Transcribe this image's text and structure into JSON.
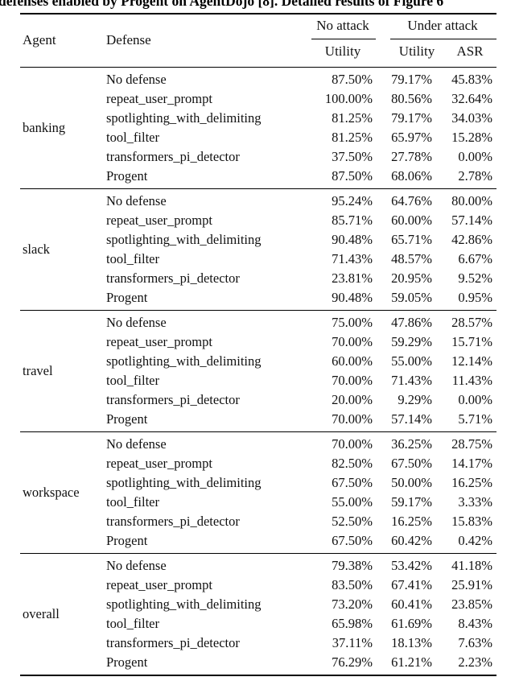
{
  "caption": {
    "visible_fragment": "defenses enabled by Progent on AgentDojo [8]. Detailed results of Figure 6"
  },
  "table": {
    "headers": {
      "agent": "Agent",
      "defense": "Defense",
      "no_attack_group": "No attack",
      "under_attack_group": "Under attack",
      "no_attack_utility": "Utility",
      "under_attack_utility": "Utility",
      "asr": "ASR"
    },
    "sections": [
      {
        "agent": "banking",
        "rows": [
          {
            "defense": "No defense",
            "na_utility": "87.50%",
            "ua_utility": "79.17%",
            "asr": "45.83%"
          },
          {
            "defense": "repeat_user_prompt",
            "na_utility": "100.00%",
            "ua_utility": "80.56%",
            "asr": "32.64%"
          },
          {
            "defense": "spotlighting_with_delimiting",
            "na_utility": "81.25%",
            "ua_utility": "79.17%",
            "asr": "34.03%"
          },
          {
            "defense": "tool_filter",
            "na_utility": "81.25%",
            "ua_utility": "65.97%",
            "asr": "15.28%"
          },
          {
            "defense": "transformers_pi_detector",
            "na_utility": "37.50%",
            "ua_utility": "27.78%",
            "asr": "0.00%"
          },
          {
            "defense": "Progent",
            "na_utility": "87.50%",
            "ua_utility": "68.06%",
            "asr": "2.78%"
          }
        ]
      },
      {
        "agent": "slack",
        "rows": [
          {
            "defense": "No defense",
            "na_utility": "95.24%",
            "ua_utility": "64.76%",
            "asr": "80.00%"
          },
          {
            "defense": "repeat_user_prompt",
            "na_utility": "85.71%",
            "ua_utility": "60.00%",
            "asr": "57.14%"
          },
          {
            "defense": "spotlighting_with_delimiting",
            "na_utility": "90.48%",
            "ua_utility": "65.71%",
            "asr": "42.86%"
          },
          {
            "defense": "tool_filter",
            "na_utility": "71.43%",
            "ua_utility": "48.57%",
            "asr": "6.67%"
          },
          {
            "defense": "transformers_pi_detector",
            "na_utility": "23.81%",
            "ua_utility": "20.95%",
            "asr": "9.52%"
          },
          {
            "defense": "Progent",
            "na_utility": "90.48%",
            "ua_utility": "59.05%",
            "asr": "0.95%"
          }
        ]
      },
      {
        "agent": "travel",
        "rows": [
          {
            "defense": "No defense",
            "na_utility": "75.00%",
            "ua_utility": "47.86%",
            "asr": "28.57%"
          },
          {
            "defense": "repeat_user_prompt",
            "na_utility": "70.00%",
            "ua_utility": "59.29%",
            "asr": "15.71%"
          },
          {
            "defense": "spotlighting_with_delimiting",
            "na_utility": "60.00%",
            "ua_utility": "55.00%",
            "asr": "12.14%"
          },
          {
            "defense": "tool_filter",
            "na_utility": "70.00%",
            "ua_utility": "71.43%",
            "asr": "11.43%"
          },
          {
            "defense": "transformers_pi_detector",
            "na_utility": "20.00%",
            "ua_utility": "9.29%",
            "asr": "0.00%"
          },
          {
            "defense": "Progent",
            "na_utility": "70.00%",
            "ua_utility": "57.14%",
            "asr": "5.71%"
          }
        ]
      },
      {
        "agent": "workspace",
        "rows": [
          {
            "defense": "No defense",
            "na_utility": "70.00%",
            "ua_utility": "36.25%",
            "asr": "28.75%"
          },
          {
            "defense": "repeat_user_prompt",
            "na_utility": "82.50%",
            "ua_utility": "67.50%",
            "asr": "14.17%"
          },
          {
            "defense": "spotlighting_with_delimiting",
            "na_utility": "67.50%",
            "ua_utility": "50.00%",
            "asr": "16.25%"
          },
          {
            "defense": "tool_filter",
            "na_utility": "55.00%",
            "ua_utility": "59.17%",
            "asr": "3.33%"
          },
          {
            "defense": "transformers_pi_detector",
            "na_utility": "52.50%",
            "ua_utility": "16.25%",
            "asr": "15.83%"
          },
          {
            "defense": "Progent",
            "na_utility": "67.50%",
            "ua_utility": "60.42%",
            "asr": "0.42%"
          }
        ]
      },
      {
        "agent": "overall",
        "rows": [
          {
            "defense": "No defense",
            "na_utility": "79.38%",
            "ua_utility": "53.42%",
            "asr": "41.18%"
          },
          {
            "defense": "repeat_user_prompt",
            "na_utility": "83.50%",
            "ua_utility": "67.41%",
            "asr": "25.91%"
          },
          {
            "defense": "spotlighting_with_delimiting",
            "na_utility": "73.20%",
            "ua_utility": "60.41%",
            "asr": "23.85%"
          },
          {
            "defense": "tool_filter",
            "na_utility": "65.98%",
            "ua_utility": "61.69%",
            "asr": "8.43%"
          },
          {
            "defense": "transformers_pi_detector",
            "na_utility": "37.11%",
            "ua_utility": "18.13%",
            "asr": "7.63%"
          },
          {
            "defense": "Progent",
            "na_utility": "76.29%",
            "ua_utility": "61.21%",
            "asr": "2.23%"
          }
        ]
      }
    ]
  }
}
